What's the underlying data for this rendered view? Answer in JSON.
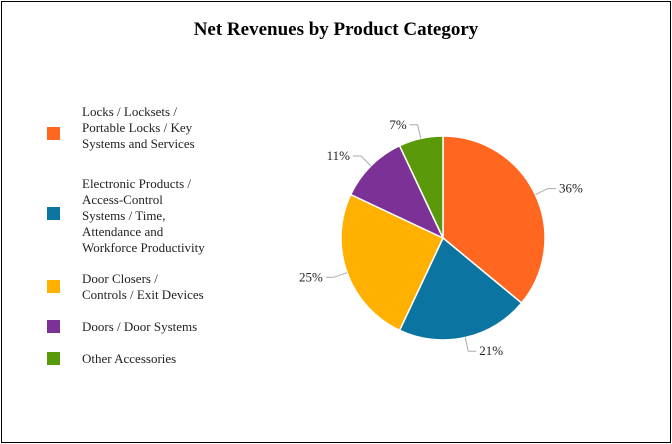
{
  "chart_data": {
    "type": "pie",
    "title": "Net Revenues by Product Category",
    "legend_position": "left",
    "start_angle": "top, clockwise",
    "slices": [
      {
        "name": "Locks / Locksets /\nPortable Locks / Key\nSystems and Services",
        "value": 36,
        "label": "36%",
        "color": "#FF6720"
      },
      {
        "name": "Electronic Products /\nAccess-Control\nSystems / Time,\nAttendance and\nWorkforce Productivity",
        "value": 21,
        "label": "21%",
        "color": "#0C74A0"
      },
      {
        "name": "Door Closers /\nControls / Exit Devices",
        "value": 25,
        "label": "25%",
        "color": "#FFB000"
      },
      {
        "name": "Doors / Door Systems",
        "value": 11,
        "label": "11%",
        "color": "#7B3196"
      },
      {
        "name": "Other Accessories",
        "value": 7,
        "label": "7%",
        "color": "#5A9A0A"
      }
    ]
  }
}
